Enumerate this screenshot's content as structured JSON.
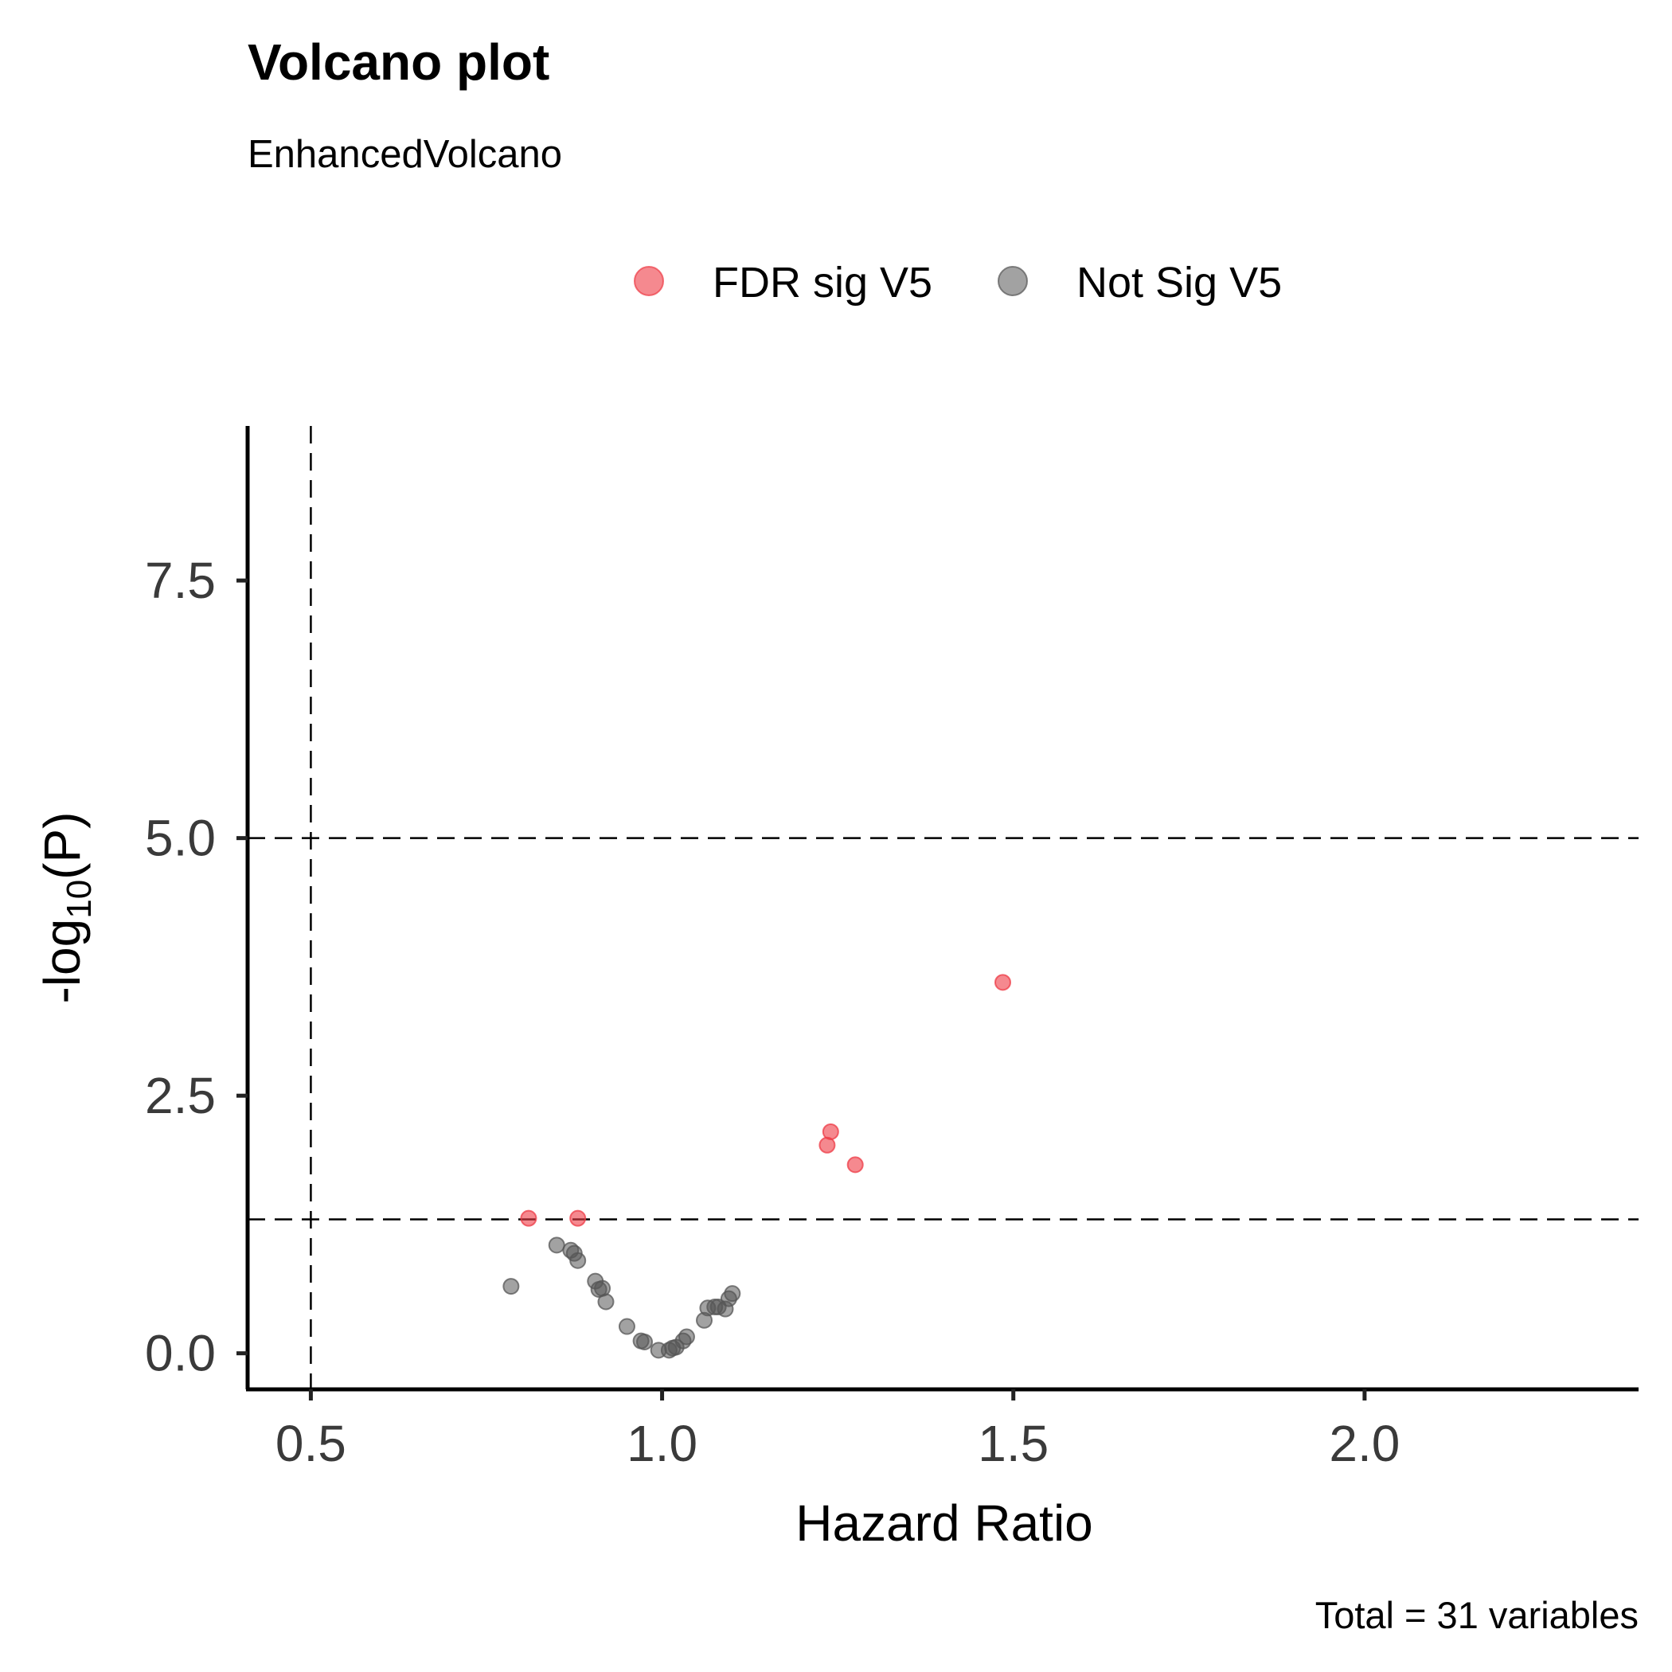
{
  "chart_data": {
    "type": "scatter",
    "title": "Volcano plot",
    "subtitle": "EnhancedVolcano",
    "xlabel": "Hazard Ratio",
    "ylabel_base": "-log",
    "ylabel_sub": "10",
    "ylabel_tail": "(P)",
    "caption": "Total = 31 variables",
    "xlim": [
      0.41,
      2.39
    ],
    "ylim": [
      -0.35,
      9.0
    ],
    "x_ticks": [
      0.5,
      1.0,
      1.5,
      2.0
    ],
    "x_tick_labels": [
      "0.5",
      "1.0",
      "1.5",
      "2.0"
    ],
    "y_ticks": [
      0.0,
      2.5,
      5.0,
      7.5
    ],
    "y_tick_labels": [
      "0.0",
      "2.5",
      "5.0",
      "7.5"
    ],
    "cutoff_lines": {
      "x": [
        0.5
      ],
      "y": [
        1.3,
        5.0
      ]
    },
    "grid": false,
    "legend_position": "top",
    "series": [
      {
        "name": "FDR sig V5",
        "color": "#ee3b45",
        "points": [
          {
            "x": 0.81,
            "y": 1.31
          },
          {
            "x": 0.88,
            "y": 1.31
          },
          {
            "x": 1.235,
            "y": 2.02
          },
          {
            "x": 1.24,
            "y": 2.15
          },
          {
            "x": 1.275,
            "y": 1.83
          },
          {
            "x": 1.485,
            "y": 3.6
          }
        ]
      },
      {
        "name": "Not Sig V5",
        "color": "#555555",
        "points": [
          {
            "x": 0.785,
            "y": 0.65
          },
          {
            "x": 0.85,
            "y": 1.05
          },
          {
            "x": 0.87,
            "y": 1.0
          },
          {
            "x": 0.875,
            "y": 0.97
          },
          {
            "x": 0.88,
            "y": 0.9
          },
          {
            "x": 0.905,
            "y": 0.7
          },
          {
            "x": 0.91,
            "y": 0.62
          },
          {
            "x": 0.915,
            "y": 0.63
          },
          {
            "x": 0.92,
            "y": 0.5
          },
          {
            "x": 0.95,
            "y": 0.26
          },
          {
            "x": 0.97,
            "y": 0.12
          },
          {
            "x": 0.975,
            "y": 0.11
          },
          {
            "x": 0.995,
            "y": 0.03
          },
          {
            "x": 1.01,
            "y": 0.03
          },
          {
            "x": 1.015,
            "y": 0.05
          },
          {
            "x": 1.02,
            "y": 0.06
          },
          {
            "x": 1.03,
            "y": 0.12
          },
          {
            "x": 1.035,
            "y": 0.16
          },
          {
            "x": 1.06,
            "y": 0.32
          },
          {
            "x": 1.065,
            "y": 0.44
          },
          {
            "x": 1.075,
            "y": 0.45
          },
          {
            "x": 1.08,
            "y": 0.45
          },
          {
            "x": 1.09,
            "y": 0.43
          },
          {
            "x": 1.095,
            "y": 0.53
          },
          {
            "x": 1.1,
            "y": 0.58
          }
        ]
      }
    ]
  }
}
